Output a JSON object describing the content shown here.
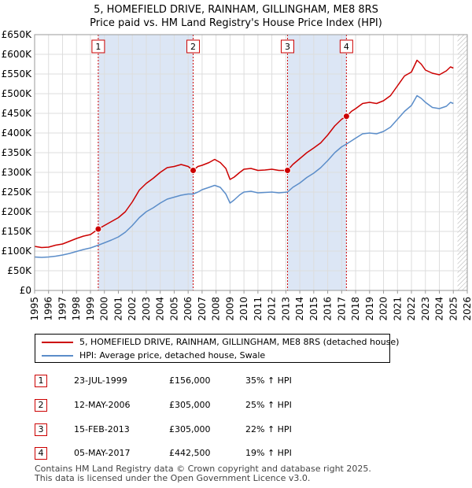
{
  "title_line1": "5, HOMEFIELD DRIVE, RAINHAM, GILLINGHAM, ME8 8RS",
  "title_line2": "Price paid vs. HM Land Registry's House Price Index (HPI)",
  "chart_data": {
    "type": "line",
    "xlim": [
      1995,
      2026
    ],
    "ylim": [
      0,
      650000
    ],
    "y_ticks": [
      {
        "value": 0,
        "label": "£0"
      },
      {
        "value": 50000,
        "label": "£50K"
      },
      {
        "value": 100000,
        "label": "£100K"
      },
      {
        "value": 150000,
        "label": "£150K"
      },
      {
        "value": 200000,
        "label": "£200K"
      },
      {
        "value": 250000,
        "label": "£250K"
      },
      {
        "value": 300000,
        "label": "£300K"
      },
      {
        "value": 350000,
        "label": "£350K"
      },
      {
        "value": 400000,
        "label": "£400K"
      },
      {
        "value": 450000,
        "label": "£450K"
      },
      {
        "value": 500000,
        "label": "£500K"
      },
      {
        "value": 550000,
        "label": "£550K"
      },
      {
        "value": 600000,
        "label": "£600K"
      },
      {
        "value": 650000,
        "label": "£650K"
      }
    ],
    "x_ticks": [
      "1995",
      "1996",
      "1997",
      "1998",
      "1999",
      "2000",
      "2001",
      "2002",
      "2003",
      "2004",
      "2005",
      "2006",
      "2007",
      "2008",
      "2009",
      "2010",
      "2011",
      "2012",
      "2013",
      "2014",
      "2015",
      "2016",
      "2017",
      "2018",
      "2019",
      "2020",
      "2021",
      "2022",
      "2023",
      "2024",
      "2025",
      "2026"
    ],
    "grid": true,
    "data_end_year": 2025.3,
    "colors": {
      "property": "#cc0000",
      "hpi": "#5b8dc9",
      "shade": "#dce6f5",
      "grid": "#dddddd"
    },
    "series": [
      {
        "name": "5, HOMEFIELD DRIVE, RAINHAM, GILLINGHAM, ME8 8RS (detached house)",
        "color": "#cc0000",
        "points": [
          [
            1995.0,
            112000
          ],
          [
            1995.5,
            109000
          ],
          [
            1996.0,
            110000
          ],
          [
            1996.5,
            115000
          ],
          [
            1997.0,
            118000
          ],
          [
            1997.5,
            125000
          ],
          [
            1998.0,
            132000
          ],
          [
            1998.5,
            138000
          ],
          [
            1999.0,
            142000
          ],
          [
            1999.56,
            156000
          ],
          [
            2000.0,
            165000
          ],
          [
            2000.5,
            175000
          ],
          [
            2001.0,
            185000
          ],
          [
            2001.5,
            200000
          ],
          [
            2002.0,
            225000
          ],
          [
            2002.5,
            255000
          ],
          [
            2003.0,
            272000
          ],
          [
            2003.5,
            285000
          ],
          [
            2004.0,
            300000
          ],
          [
            2004.5,
            312000
          ],
          [
            2005.0,
            315000
          ],
          [
            2005.5,
            320000
          ],
          [
            2006.0,
            315000
          ],
          [
            2006.36,
            305000
          ],
          [
            2006.7,
            315000
          ],
          [
            2007.0,
            318000
          ],
          [
            2007.5,
            325000
          ],
          [
            2007.9,
            333000
          ],
          [
            2008.3,
            325000
          ],
          [
            2008.7,
            310000
          ],
          [
            2009.0,
            282000
          ],
          [
            2009.3,
            288000
          ],
          [
            2009.7,
            300000
          ],
          [
            2010.0,
            308000
          ],
          [
            2010.5,
            310000
          ],
          [
            2011.0,
            305000
          ],
          [
            2011.5,
            306000
          ],
          [
            2012.0,
            308000
          ],
          [
            2012.5,
            305000
          ],
          [
            2013.12,
            305000
          ],
          [
            2013.5,
            320000
          ],
          [
            2014.0,
            335000
          ],
          [
            2014.5,
            350000
          ],
          [
            2015.0,
            362000
          ],
          [
            2015.5,
            375000
          ],
          [
            2016.0,
            395000
          ],
          [
            2016.5,
            418000
          ],
          [
            2017.0,
            435000
          ],
          [
            2017.34,
            442500
          ],
          [
            2017.7,
            455000
          ],
          [
            2018.0,
            462000
          ],
          [
            2018.5,
            475000
          ],
          [
            2019.0,
            478000
          ],
          [
            2019.5,
            475000
          ],
          [
            2020.0,
            482000
          ],
          [
            2020.5,
            495000
          ],
          [
            2021.0,
            520000
          ],
          [
            2021.5,
            545000
          ],
          [
            2022.0,
            555000
          ],
          [
            2022.4,
            585000
          ],
          [
            2022.7,
            575000
          ],
          [
            2023.0,
            560000
          ],
          [
            2023.5,
            552000
          ],
          [
            2024.0,
            548000
          ],
          [
            2024.5,
            558000
          ],
          [
            2024.8,
            568000
          ],
          [
            2025.0,
            565000
          ]
        ]
      },
      {
        "name": "HPI: Average price, detached house, Swale",
        "color": "#5b8dc9",
        "points": [
          [
            1995.0,
            85000
          ],
          [
            1995.5,
            84000
          ],
          [
            1996.0,
            85000
          ],
          [
            1996.5,
            87000
          ],
          [
            1997.0,
            90000
          ],
          [
            1997.5,
            94000
          ],
          [
            1998.0,
            99000
          ],
          [
            1998.5,
            104000
          ],
          [
            1999.0,
            108000
          ],
          [
            1999.56,
            115000
          ],
          [
            2000.0,
            121000
          ],
          [
            2000.5,
            128000
          ],
          [
            2001.0,
            136000
          ],
          [
            2001.5,
            148000
          ],
          [
            2002.0,
            165000
          ],
          [
            2002.5,
            185000
          ],
          [
            2003.0,
            200000
          ],
          [
            2003.5,
            210000
          ],
          [
            2004.0,
            222000
          ],
          [
            2004.5,
            232000
          ],
          [
            2005.0,
            237000
          ],
          [
            2005.5,
            242000
          ],
          [
            2006.0,
            245000
          ],
          [
            2006.36,
            245000
          ],
          [
            2006.7,
            250000
          ],
          [
            2007.0,
            256000
          ],
          [
            2007.5,
            262000
          ],
          [
            2007.9,
            267000
          ],
          [
            2008.3,
            262000
          ],
          [
            2008.7,
            245000
          ],
          [
            2009.0,
            222000
          ],
          [
            2009.3,
            230000
          ],
          [
            2009.7,
            243000
          ],
          [
            2010.0,
            250000
          ],
          [
            2010.5,
            252000
          ],
          [
            2011.0,
            248000
          ],
          [
            2011.5,
            249000
          ],
          [
            2012.0,
            250000
          ],
          [
            2012.5,
            248000
          ],
          [
            2013.12,
            250000
          ],
          [
            2013.5,
            262000
          ],
          [
            2014.0,
            273000
          ],
          [
            2014.5,
            287000
          ],
          [
            2015.0,
            298000
          ],
          [
            2015.5,
            312000
          ],
          [
            2016.0,
            330000
          ],
          [
            2016.5,
            350000
          ],
          [
            2017.0,
            365000
          ],
          [
            2017.34,
            372000
          ],
          [
            2017.7,
            380000
          ],
          [
            2018.0,
            387000
          ],
          [
            2018.5,
            398000
          ],
          [
            2019.0,
            400000
          ],
          [
            2019.5,
            398000
          ],
          [
            2020.0,
            404000
          ],
          [
            2020.5,
            415000
          ],
          [
            2021.0,
            435000
          ],
          [
            2021.5,
            455000
          ],
          [
            2022.0,
            470000
          ],
          [
            2022.4,
            495000
          ],
          [
            2022.7,
            488000
          ],
          [
            2023.0,
            478000
          ],
          [
            2023.5,
            465000
          ],
          [
            2024.0,
            462000
          ],
          [
            2024.5,
            468000
          ],
          [
            2024.8,
            478000
          ],
          [
            2025.0,
            475000
          ]
        ]
      }
    ],
    "sales": [
      {
        "id": "1",
        "x": 1999.56,
        "y": 156000
      },
      {
        "id": "2",
        "x": 2006.36,
        "y": 305000
      },
      {
        "id": "3",
        "x": 2013.12,
        "y": 305000
      },
      {
        "id": "4",
        "x": 2017.34,
        "y": 442500
      }
    ],
    "shaded_periods": [
      [
        1999.56,
        2006.36
      ],
      [
        2013.12,
        2017.34
      ]
    ]
  },
  "legend": {
    "property_label": "5, HOMEFIELD DRIVE, RAINHAM, GILLINGHAM, ME8 8RS (detached house)",
    "hpi_label": "HPI: Average price, detached house, Swale"
  },
  "transactions": [
    {
      "num": "1",
      "date": "23-JUL-1999",
      "price": "£156,000",
      "hpi": "35% ↑ HPI"
    },
    {
      "num": "2",
      "date": "12-MAY-2006",
      "price": "£305,000",
      "hpi": "25% ↑ HPI"
    },
    {
      "num": "3",
      "date": "15-FEB-2013",
      "price": "£305,000",
      "hpi": "22% ↑ HPI"
    },
    {
      "num": "4",
      "date": "05-MAY-2017",
      "price": "£442,500",
      "hpi": "19% ↑ HPI"
    }
  ],
  "footer": {
    "line1": "Contains HM Land Registry data © Crown copyright and database right 2025.",
    "line2": "This data is licensed under the Open Government Licence v3.0."
  }
}
